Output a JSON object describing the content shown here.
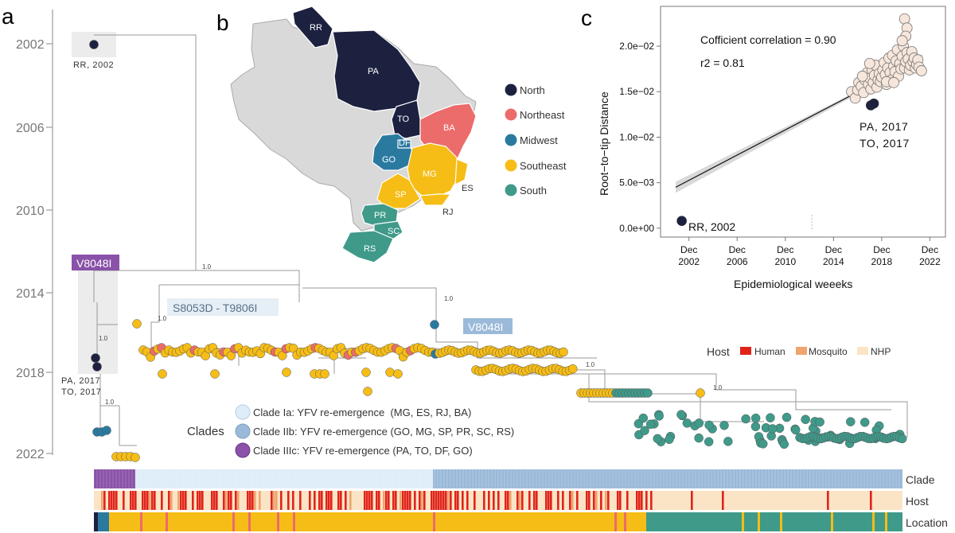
{
  "panels": {
    "a": "a",
    "b": "b",
    "c": "c"
  },
  "timeline": {
    "years": [
      "2002",
      "2006",
      "2010",
      "2014",
      "2018",
      "2022"
    ],
    "tip_labels": {
      "rr": "RR, 2002",
      "pa": "PA, 2017",
      "to": "TO, 2017"
    },
    "support_values": {
      "root": "1.0",
      "clade3": "1.0",
      "clade3_sub": "1.0",
      "clade1": "1.0",
      "clade2": "1.0",
      "clade2_sub": "1.0",
      "clade2_deep": "1.0"
    }
  },
  "mutations": {
    "clade3": "V8048I",
    "clade1": "S8053D - T9806I",
    "clade2": "V8048I"
  },
  "clades_legend": {
    "title": "Clades",
    "items": [
      {
        "label": "Clade Ia: YFV re-emergence  (MG, ES, RJ, BA)",
        "color": "#deedf8"
      },
      {
        "label": "Clade IIb: YFV re-emergence (GO, MG, SP, PR, SC, RS)",
        "color": "#9bbad9"
      },
      {
        "label": "Clade IIIc: YFV re-emergence (PA, TO, DF, GO)",
        "color": "#8a52a8"
      }
    ]
  },
  "host_legend": {
    "title": "Host",
    "items": [
      {
        "label": "Human",
        "color": "#e0241b"
      },
      {
        "label": "Mosquito",
        "color": "#f0a46e"
      },
      {
        "label": "NHP",
        "color": "#fbe4c5"
      }
    ]
  },
  "tracks": {
    "clade": "Clade",
    "host": "Host",
    "location": "Location"
  },
  "map": {
    "states": [
      "RR",
      "PA",
      "TO",
      "BA",
      "DF",
      "GO",
      "MG",
      "ES",
      "SP",
      "RJ",
      "PR",
      "SC",
      "RS"
    ],
    "regions": [
      {
        "label": "North",
        "color": "#1d2140"
      },
      {
        "label": "Northeast",
        "color": "#ec6b6b"
      },
      {
        "label": "Midwest",
        "color": "#2a7aa0"
      },
      {
        "label": "Southeast",
        "color": "#f6bd16"
      },
      {
        "label": "South",
        "color": "#3f9a8a"
      }
    ]
  },
  "colors": {
    "north": "#1d2140",
    "northeast": "#ec6b6b",
    "midwest": "#2a7aa0",
    "southeast": "#f6bd16",
    "south": "#3f9a8a",
    "clade1": "#deedf8",
    "clade2": "#9bbad9",
    "clade3": "#8a52a8",
    "map_grey": "#d9d9d9"
  },
  "chart_data": {
    "type": "scatter",
    "title": "",
    "xlabel": "Epidemiological weeeks",
    "ylabel": "Root−to−tip Distance",
    "x_ticks": [
      {
        "value": 2002,
        "line1": "Dec",
        "line2": "2002"
      },
      {
        "value": 2006,
        "line1": "Dec",
        "line2": "2006"
      },
      {
        "value": 2010,
        "line1": "Dec",
        "line2": "2010"
      },
      {
        "value": 2014,
        "line1": "Dec",
        "line2": "2014"
      },
      {
        "value": 2018,
        "line1": "Dec",
        "line2": "2018"
      },
      {
        "value": 2022,
        "line1": "Dec",
        "line2": "2022"
      }
    ],
    "y_ticks": [
      {
        "value": 0.0,
        "label": "0.0e+00"
      },
      {
        "value": 0.005,
        "label": "5.0e−03"
      },
      {
        "value": 0.01,
        "label": "1.0e−02"
      },
      {
        "value": 0.015,
        "label": "1.5e−02"
      },
      {
        "value": 0.02,
        "label": "2.0e−02"
      }
    ],
    "xlim": [
      2000.3,
      2022.5
    ],
    "ylim": [
      -0.0008,
      0.0242
    ],
    "annotation_r": "Cofficient correlation = 0.90",
    "annotation_r2": "r2 = 0.81",
    "regression": {
      "x": [
        2000.9,
        2021.4
      ],
      "y": [
        0.0045,
        0.0187
      ]
    },
    "labels": {
      "rr": "RR, 2002",
      "pa": "PA, 2017",
      "to": "TO, 2017"
    },
    "outliers": [
      {
        "x": 2001.4,
        "y": 0.0008,
        "name": "RR, 2002"
      },
      {
        "x": 2017.1,
        "y": 0.0135,
        "name": "PA, 2017"
      },
      {
        "x": 2017.35,
        "y": 0.0137,
        "name": "TO, 2017"
      }
    ],
    "series": [
      {
        "name": "samples",
        "points": [
          [
            2015.5,
            0.015
          ],
          [
            2015.8,
            0.0143
          ],
          [
            2016.0,
            0.0152
          ],
          [
            2016.1,
            0.016
          ],
          [
            2016.3,
            0.0156
          ],
          [
            2016.5,
            0.0149
          ],
          [
            2016.6,
            0.0163
          ],
          [
            2016.8,
            0.0171
          ],
          [
            2016.9,
            0.0158
          ],
          [
            2017.0,
            0.0165
          ],
          [
            2017.1,
            0.0153
          ],
          [
            2017.2,
            0.0174
          ],
          [
            2017.3,
            0.016
          ],
          [
            2017.4,
            0.0168
          ],
          [
            2017.5,
            0.0179
          ],
          [
            2017.6,
            0.0155
          ],
          [
            2017.7,
            0.0163
          ],
          [
            2017.8,
            0.017
          ],
          [
            2017.9,
            0.0161
          ],
          [
            2018.0,
            0.0166
          ],
          [
            2018.1,
            0.0174
          ],
          [
            2018.2,
            0.0182
          ],
          [
            2018.3,
            0.0169
          ],
          [
            2018.4,
            0.0158
          ],
          [
            2018.5,
            0.0176
          ],
          [
            2018.6,
            0.0187
          ],
          [
            2018.7,
            0.0171
          ],
          [
            2018.8,
            0.0163
          ],
          [
            2018.9,
            0.019
          ],
          [
            2019.0,
            0.0178
          ],
          [
            2019.1,
            0.0172
          ],
          [
            2019.2,
            0.0184
          ],
          [
            2019.3,
            0.0196
          ],
          [
            2019.4,
            0.0167
          ],
          [
            2019.5,
            0.0181
          ],
          [
            2019.6,
            0.0175
          ],
          [
            2019.7,
            0.0189
          ],
          [
            2019.8,
            0.02
          ],
          [
            2019.9,
            0.0176
          ],
          [
            2020.0,
            0.0183
          ],
          [
            2020.1,
            0.0193
          ],
          [
            2020.2,
            0.0186
          ],
          [
            2020.3,
            0.0174
          ],
          [
            2020.4,
            0.0179
          ],
          [
            2020.5,
            0.0194
          ],
          [
            2020.6,
            0.0183
          ],
          [
            2020.7,
            0.0187
          ],
          [
            2020.8,
            0.0176
          ],
          [
            2020.9,
            0.018
          ],
          [
            2021.0,
            0.0185
          ],
          [
            2021.1,
            0.0177
          ],
          [
            2021.3,
            0.0173
          ],
          [
            2019.9,
            0.023
          ],
          [
            2020.1,
            0.022
          ],
          [
            2020.0,
            0.0211
          ],
          [
            2019.7,
            0.0206
          ],
          [
            2016.4,
            0.0167
          ],
          [
            2017.0,
            0.0181
          ],
          [
            2018.4,
            0.0161
          ],
          [
            2019.0,
            0.016
          ]
        ]
      }
    ]
  }
}
